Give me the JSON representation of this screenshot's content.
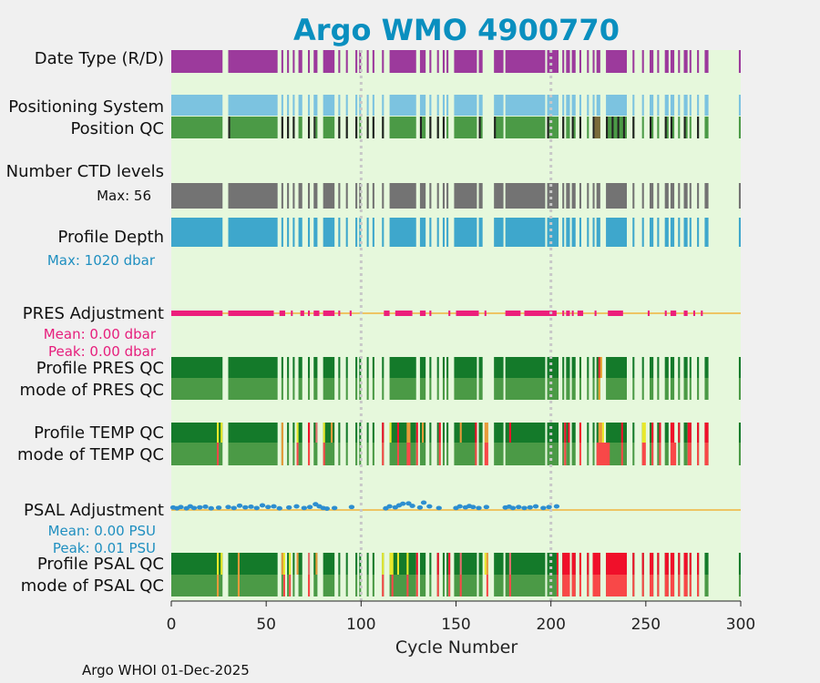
{
  "chart_data": {
    "type": "bar",
    "title": "Argo WMO 4900770",
    "xlabel": "Cycle Number",
    "xlim": [
      0,
      300
    ],
    "xticks": [
      0,
      50,
      100,
      150,
      200,
      250,
      300
    ],
    "reference_lines": [
      100,
      200
    ],
    "footer": "Argo WHOI 01-Dec-2025",
    "row_labels": {
      "data_type": "Date Type (R/D)",
      "positioning_system": "Positioning System",
      "position_qc": "Position QC",
      "ctd_levels": "Number CTD levels",
      "profile_depth": "Profile Depth",
      "pres_adjustment": "PRES Adjustment",
      "profile_pres_qc": "Profile PRES QC",
      "mode_pres_qc": "mode of PRES QC",
      "profile_temp_qc": "Profile TEMP QC",
      "mode_temp_qc": "mode of TEMP QC",
      "psal_adjustment": "PSAL Adjustment",
      "profile_psal_qc": "Profile PSAL QC",
      "mode_psal_qc": "mode of PSAL QC"
    },
    "annotations": {
      "ctd_max": "Max: 56",
      "depth_max": "Max: 1020 dbar",
      "pres_mean": "Mean: 0.00 dbar",
      "pres_peak": "Peak: 0.00 dbar",
      "psal_mean": "Mean: 0.00 PSU",
      "psal_peak": "Peak: 0.01 PSU"
    },
    "cycle_segments": [
      [
        0,
        27
      ],
      [
        30,
        56
      ],
      [
        58,
        59
      ],
      [
        61,
        62
      ],
      [
        64,
        65
      ],
      [
        67,
        69
      ],
      [
        72,
        73
      ],
      [
        75,
        77
      ],
      [
        80,
        86
      ],
      [
        88,
        89
      ],
      [
        92,
        93
      ],
      [
        97,
        98
      ],
      [
        99,
        100
      ],
      [
        103,
        104
      ],
      [
        106,
        107
      ],
      [
        111,
        112
      ],
      [
        115,
        129
      ],
      [
        131,
        134
      ],
      [
        136,
        137
      ],
      [
        140,
        141
      ],
      [
        143,
        144
      ],
      [
        145,
        146
      ],
      [
        149,
        161
      ],
      [
        162,
        164
      ],
      [
        170,
        175
      ],
      [
        176,
        197
      ],
      [
        198,
        204
      ],
      [
        206,
        207
      ],
      [
        208,
        210
      ],
      [
        211,
        213
      ],
      [
        215,
        216
      ],
      [
        219,
        220
      ],
      [
        222,
        223
      ],
      [
        224,
        226
      ],
      [
        229,
        240
      ],
      [
        243,
        244
      ],
      [
        248,
        249
      ],
      [
        252,
        254
      ],
      [
        256,
        257
      ],
      [
        260,
        262
      ],
      [
        263,
        265
      ],
      [
        267,
        268
      ],
      [
        270,
        272
      ],
      [
        273,
        274
      ],
      [
        277,
        278
      ],
      [
        281,
        283
      ],
      [
        299,
        300
      ]
    ],
    "adjustment_segments": [
      [
        0,
        27
      ],
      [
        30,
        54
      ],
      [
        57,
        60
      ],
      [
        63,
        64
      ],
      [
        68,
        70
      ],
      [
        72,
        73
      ],
      [
        75,
        78
      ],
      [
        80,
        86
      ],
      [
        88,
        89
      ],
      [
        94,
        95
      ],
      [
        112,
        115
      ],
      [
        118,
        127
      ],
      [
        131,
        134
      ],
      [
        136,
        137
      ],
      [
        146,
        147
      ],
      [
        150,
        162
      ],
      [
        165,
        166
      ],
      [
        176,
        184
      ],
      [
        186,
        203
      ],
      [
        206,
        207
      ],
      [
        208,
        210
      ],
      [
        211,
        212
      ],
      [
        214,
        217
      ],
      [
        223,
        224
      ],
      [
        230,
        238
      ],
      [
        251,
        252
      ],
      [
        260,
        261
      ],
      [
        263,
        266
      ],
      [
        270,
        272
      ],
      [
        275,
        276
      ],
      [
        279,
        280
      ]
    ],
    "psal_adjustment_points": [
      [
        1,
        0.0015
      ],
      [
        3,
        0.001
      ],
      [
        5,
        0.0018
      ],
      [
        8,
        0.001
      ],
      [
        10,
        0.0022
      ],
      [
        12,
        0.0012
      ],
      [
        15,
        0.0016
      ],
      [
        18,
        0.002
      ],
      [
        21,
        0.001
      ],
      [
        25,
        0.0014
      ],
      [
        30,
        0.0018
      ],
      [
        33,
        0.0012
      ],
      [
        36,
        0.0026
      ],
      [
        39,
        0.0016
      ],
      [
        42,
        0.002
      ],
      [
        45,
        0.0012
      ],
      [
        48,
        0.0028
      ],
      [
        51,
        0.0018
      ],
      [
        54,
        0.0022
      ],
      [
        57,
        0.001
      ],
      [
        62,
        0.0015
      ],
      [
        66,
        0.0022
      ],
      [
        70,
        0.0012
      ],
      [
        73,
        0.0018
      ],
      [
        76,
        0.0035
      ],
      [
        78,
        0.0022
      ],
      [
        80,
        0.0012
      ],
      [
        82,
        0.0008
      ],
      [
        86,
        0.0012
      ],
      [
        95,
        0.0018
      ],
      [
        113,
        0.001
      ],
      [
        115,
        0.0022
      ],
      [
        118,
        0.0016
      ],
      [
        120,
        0.0028
      ],
      [
        122,
        0.0038
      ],
      [
        125,
        0.004
      ],
      [
        127,
        0.0025
      ],
      [
        131,
        0.0015
      ],
      [
        133,
        0.0045
      ],
      [
        136,
        0.0022
      ],
      [
        141,
        0.0012
      ],
      [
        150,
        0.0012
      ],
      [
        152,
        0.0022
      ],
      [
        155,
        0.0016
      ],
      [
        157,
        0.0024
      ],
      [
        159,
        0.0018
      ],
      [
        162,
        0.0012
      ],
      [
        166,
        0.0018
      ],
      [
        176,
        0.0015
      ],
      [
        178,
        0.002
      ],
      [
        180,
        0.0012
      ],
      [
        183,
        0.0018
      ],
      [
        186,
        0.0012
      ],
      [
        189,
        0.0016
      ],
      [
        192,
        0.0022
      ],
      [
        196,
        0.0012
      ],
      [
        199,
        0.0018
      ],
      [
        203,
        0.0022
      ]
    ],
    "qc_flag_colors": {
      "good": "#147a2a",
      "mode_good": "#4b9a46",
      "questionable": "#e8e82a",
      "correctable": "#e89a3a",
      "bad": "#f0102a",
      "mode_bad": "#f84848"
    },
    "colors": {
      "plot_bg": "#e6f8dc",
      "data_type": "#9c3a9c",
      "positioning_system": "#7cc3e0",
      "ctd_levels": "#737373",
      "profile_depth": "#3ea7cc",
      "pres_adjustment": "#ec1f7b",
      "psal_adjustment": "#2d8ed0",
      "zero_line": "#f0b43c",
      "ref_line": "#c8c8c8",
      "title": "#0a8fbf",
      "depth_annotation": "#1f8fc0",
      "pres_annotation": "#e61e7c",
      "psal_annotation": "#1f8fc0"
    }
  }
}
